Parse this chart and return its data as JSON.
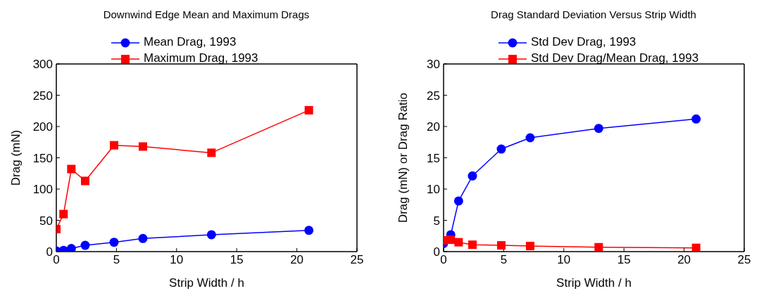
{
  "chart_data": [
    {
      "type": "line",
      "title": "Downwind Edge Mean and Maximum Drags",
      "xlabel": "Strip Width / h",
      "ylabel": "Drag (mN)",
      "xlim": [
        0,
        25
      ],
      "xticks": [
        0,
        5,
        10,
        15,
        20,
        25
      ],
      "ylim": [
        0,
        300
      ],
      "yticks": [
        0,
        50,
        100,
        150,
        200,
        250,
        300
      ],
      "legend": "top",
      "grid": false,
      "x": [
        0,
        0.6,
        1.25,
        2.4,
        4.8,
        7.2,
        12.9,
        21.0
      ],
      "series": [
        {
          "name": "Mean Drag, 1993",
          "color": "#0000ff",
          "marker": "circle",
          "values": [
            1,
            2,
            5,
            10,
            15,
            21,
            27,
            34
          ]
        },
        {
          "name": "Maximum Drag, 1993",
          "color": "#ff0000",
          "marker": "square",
          "values": [
            36,
            60,
            132,
            113,
            170,
            168,
            158,
            226
          ]
        }
      ]
    },
    {
      "type": "line",
      "title": "Drag Standard Deviation Versus Strip Width",
      "xlabel": "Strip Width / h",
      "ylabel": "Drag (mN) or Drag Ratio",
      "xlim": [
        0,
        25
      ],
      "xticks": [
        0,
        5,
        10,
        15,
        20,
        25
      ],
      "ylim": [
        0,
        30
      ],
      "yticks": [
        0,
        5,
        10,
        15,
        20,
        25,
        30
      ],
      "legend": "top",
      "grid": false,
      "x": [
        0,
        0.6,
        1.25,
        2.4,
        4.8,
        7.2,
        12.9,
        21.0
      ],
      "series": [
        {
          "name": "Std Dev Drag, 1993",
          "color": "#0000ff",
          "marker": "circle",
          "values": [
            1.3,
            2.7,
            8.1,
            12.1,
            16.4,
            18.2,
            19.7,
            21.2
          ]
        },
        {
          "name": "Std Dev Drag/Mean Drag, 1993",
          "color": "#ff0000",
          "marker": "square",
          "values": [
            1.8,
            1.9,
            1.5,
            1.1,
            1.0,
            0.9,
            0.7,
            0.6
          ]
        }
      ]
    }
  ]
}
